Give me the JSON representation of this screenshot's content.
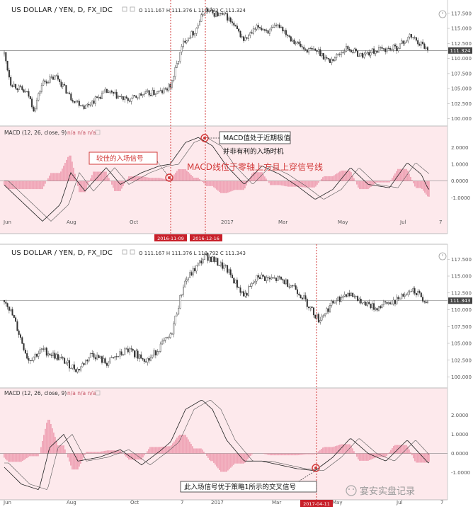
{
  "chart_data": [
    {
      "type": "candlestick",
      "title": "US DOLLAR / YEN, D, FX_IDC",
      "ohlc_label": "O 111.167 H 111.376 L 110.792 C 111.324",
      "price_ylim": [
        99.5,
        119.0
      ],
      "price_ticks": [
        "117.500",
        "115.000",
        "112.500",
        "110.000",
        "107.500",
        "105.000",
        "102.500",
        "100.000"
      ],
      "last_price": "111.324",
      "x_labels": [
        "Jun",
        "Aug",
        "Oct",
        "2017",
        "Mar",
        "May",
        "Jul",
        "7"
      ],
      "macd_header": "MACD (12, 26, close, 9)",
      "macd_values": "n/a  n/a  n/a",
      "macd_ylim": [
        -2.8,
        3.2
      ],
      "macd_ticks": [
        "2.0000",
        "1.0000",
        "0.0000",
        "-1.0000"
      ],
      "vlines": [
        {
          "date": "2016-11-09",
          "label": "2016-11-09"
        },
        {
          "date": "2016-12-16",
          "label": "2016-12-16"
        }
      ],
      "annotations": {
        "entry_box": "较佳的入场信号",
        "peak_line1": "MACD值处于近期极值",
        "peak_line2": "并非有利的入场时机",
        "cross_text": "MACD线位于零轴上方且上穿信号线"
      }
    },
    {
      "type": "candlestick",
      "title": "US DOLLAR / YEN, D, FX_IDC",
      "ohlc_label": "O 111.167 H 111.376 L 110.792 C 111.343",
      "price_ylim": [
        99.0,
        119.0
      ],
      "price_ticks": [
        "117.500",
        "115.000",
        "112.500",
        "110.000",
        "107.500",
        "105.000",
        "102.500",
        "100.000"
      ],
      "last_price": "111.343",
      "x_labels": [
        "Jun",
        "Aug",
        "Oct",
        "7",
        "2017",
        "Mar",
        "May",
        "Jul",
        "7"
      ],
      "macd_header": "MACD (12, 26, close, 9)",
      "macd_values": "n/a  n/a  n/a",
      "macd_ylim": [
        -2.2,
        3.2
      ],
      "macd_ticks": [
        "2.0000",
        "1.0000",
        "0.0000",
        "-1.0000"
      ],
      "vlines": [
        {
          "date": "2017-04-11",
          "label": "2017-04-11"
        }
      ],
      "annotations": {
        "entry_box": "此入场信号优于策略1所示的交叉信号"
      }
    }
  ],
  "watermark": "宴安实盘记录"
}
